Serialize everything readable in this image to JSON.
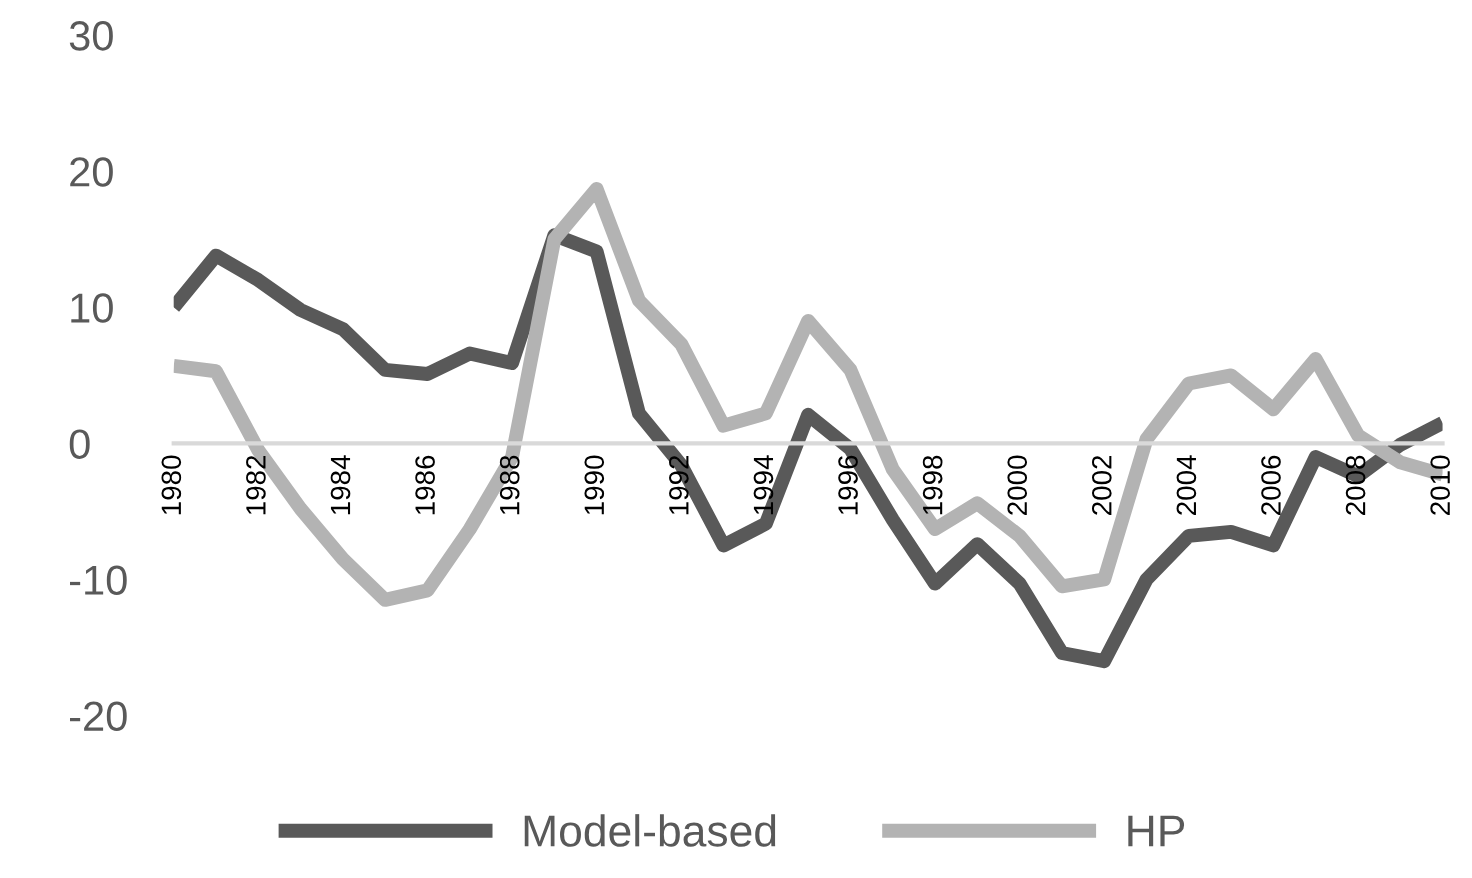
{
  "chart_data": {
    "type": "line",
    "x": [
      1980,
      1981,
      1982,
      1983,
      1984,
      1985,
      1986,
      1987,
      1988,
      1989,
      1990,
      1991,
      1992,
      1993,
      1994,
      1995,
      1996,
      1997,
      1998,
      1999,
      2000,
      2001,
      2002,
      2003,
      2004,
      2005,
      2006,
      2007,
      2008,
      2009,
      2010
    ],
    "series": [
      {
        "name": "Model-based",
        "color": "#595959",
        "values": [
          10.0,
          13.8,
          12.0,
          9.8,
          8.4,
          5.4,
          5.1,
          6.6,
          5.9,
          15.3,
          14.1,
          2.2,
          -1.6,
          -7.5,
          -5.9,
          2.1,
          -0.4,
          -5.6,
          -10.3,
          -7.4,
          -10.3,
          -15.4,
          -16.0,
          -10.0,
          -6.8,
          -6.5,
          -7.5,
          -1.0,
          -2.4,
          -0.1,
          1.5
        ]
      },
      {
        "name": "HP",
        "color": "#b3b3b3",
        "values": [
          5.7,
          5.3,
          -0.5,
          -4.8,
          -8.5,
          -11.5,
          -10.8,
          -6.3,
          -1.0,
          15.0,
          18.7,
          10.5,
          7.3,
          1.3,
          2.2,
          9.0,
          5.4,
          -1.9,
          -6.3,
          -4.4,
          -6.8,
          -10.5,
          -10.0,
          0.3,
          4.4,
          5.0,
          2.5,
          6.2,
          0.6,
          -1.4,
          -2.3
        ]
      }
    ],
    "xlim": [
      1980,
      2010
    ],
    "xticks": [
      1980,
      1982,
      1984,
      1986,
      1988,
      1990,
      1992,
      1994,
      1996,
      1998,
      2000,
      2002,
      2004,
      2006,
      2008,
      2010
    ],
    "ylim": [
      -20,
      30
    ],
    "yticks": [
      -20,
      -10,
      0,
      10,
      20,
      30
    ],
    "grid": false,
    "legend": "bottom",
    "marker": "none",
    "line_style": "solid"
  }
}
